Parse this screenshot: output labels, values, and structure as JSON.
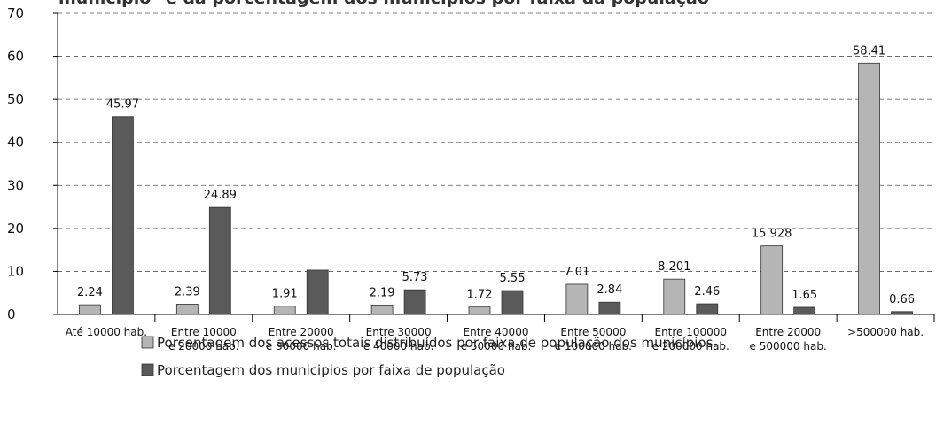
{
  "chart_data": {
    "type": "bar",
    "title": "município\" e da porcentagem dos municípios por faixa da população",
    "categories": [
      "Até 10000 hab.",
      "Entre 10000 e 20000 hab.",
      "Entre 20000 e 30000 hab.",
      "Entre 30000 e 40000 hab.",
      "Entre 40000 e 50000 hab.",
      "Entre 50000 e 100000 hab.",
      "Entre 100000 e 200000 hab.",
      "Entre 20000 e 500000 hab.",
      ">500000 hab."
    ],
    "series": [
      {
        "name": "Porcentagem dos acessos totais distribuídos por faixa de população dos municípios",
        "color": "#b5b5b5",
        "values": [
          2.24,
          2.39,
          1.91,
          2.19,
          1.72,
          7.01,
          8.201,
          15.928,
          58.41
        ]
      },
      {
        "name": "Porcentagem dos municipios por faixa de população",
        "color": "#5a5a5a",
        "values": [
          45.97,
          24.89,
          10.3,
          5.73,
          5.55,
          2.84,
          2.46,
          1.65,
          0.66
        ],
        "value_labels": [
          "45.97",
          "24.89",
          null,
          "5.73",
          "5.55",
          "2.84",
          "2.46",
          "1.65",
          "0.66"
        ]
      }
    ],
    "ylim": [
      0,
      70
    ],
    "yticks": [
      0,
      10,
      20,
      30,
      40,
      50,
      60,
      70
    ],
    "grid": true
  }
}
